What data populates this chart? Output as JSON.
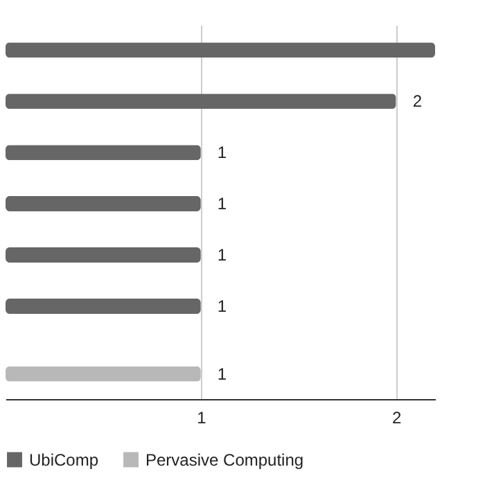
{
  "chart_data": {
    "type": "bar",
    "orientation": "horizontal",
    "categories": [
      null,
      null,
      null,
      null,
      null,
      null,
      null
    ],
    "series": [
      {
        "name": "UbiComp",
        "color": "#666666",
        "values": [
          2.2,
          2,
          1,
          1,
          1,
          1,
          null
        ],
        "value_labels": [
          null,
          "2",
          "1",
          "1",
          "1",
          "1",
          null
        ]
      },
      {
        "name": "Pervasive Computing",
        "color": "#b8b8b8",
        "values": [
          null,
          null,
          null,
          null,
          null,
          null,
          1
        ],
        "value_labels": [
          null,
          null,
          null,
          null,
          null,
          null,
          "1"
        ]
      }
    ],
    "xlim": [
      0,
      2.2
    ],
    "xticks": [
      1,
      2
    ],
    "grid": "x",
    "legend": "bottom"
  }
}
